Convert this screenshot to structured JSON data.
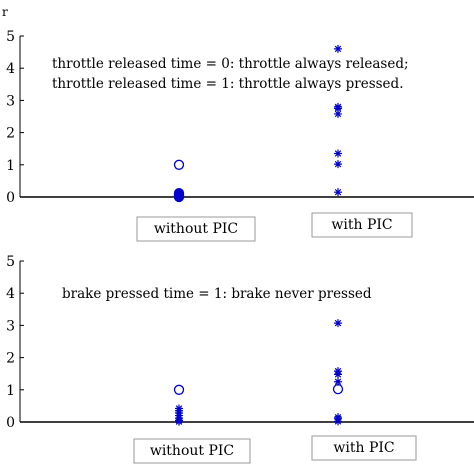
{
  "chart_data": [
    {
      "type": "scatter",
      "ylim": [
        0,
        5
      ],
      "yticks": [
        "0",
        "1",
        "2",
        "3",
        "4",
        "5"
      ],
      "categories": [
        "without PIC",
        "with PIC"
      ],
      "annotation_lines": [
        "throttle released time = 0: throttle always released;",
        "throttle released time = 1: throttle always pressed."
      ],
      "series": [
        {
          "marker": "circle",
          "color": "#0000cc",
          "category": "without PIC",
          "y": [
            1.0,
            0.12,
            0.08,
            0.04,
            0.02,
            0.0
          ]
        },
        {
          "marker": "asterisk",
          "color": "#0000cc",
          "category": "without PIC",
          "y": [
            0.15,
            0.1,
            0.05,
            0.02
          ]
        },
        {
          "marker": "asterisk",
          "color": "#0000cc",
          "category": "with PIC",
          "y": [
            4.6,
            2.8,
            2.75,
            2.58,
            1.35,
            1.02,
            0.15
          ]
        }
      ]
    },
    {
      "type": "scatter",
      "ylim": [
        0,
        5
      ],
      "yticks": [
        "0",
        "1",
        "2",
        "3",
        "4",
        "5"
      ],
      "categories": [
        "without PIC",
        "with PIC"
      ],
      "annotation_lines": [
        "brake pressed time = 1: brake never pressed"
      ],
      "series": [
        {
          "marker": "circle",
          "color": "#0000cc",
          "category": "without PIC",
          "y": [
            1.0
          ]
        },
        {
          "marker": "asterisk",
          "color": "#0000cc",
          "category": "without PIC",
          "y": [
            0.42,
            0.35,
            0.28,
            0.2,
            0.12,
            0.05,
            0.01
          ]
        },
        {
          "marker": "circle",
          "color": "#0000cc",
          "category": "with PIC",
          "y": [
            1.02
          ]
        },
        {
          "marker": "asterisk",
          "color": "#0000cc",
          "category": "with PIC",
          "y": [
            3.07,
            1.58,
            1.48,
            1.25,
            0.15,
            0.1,
            0.02
          ]
        }
      ]
    }
  ],
  "edge_fragment": "r"
}
